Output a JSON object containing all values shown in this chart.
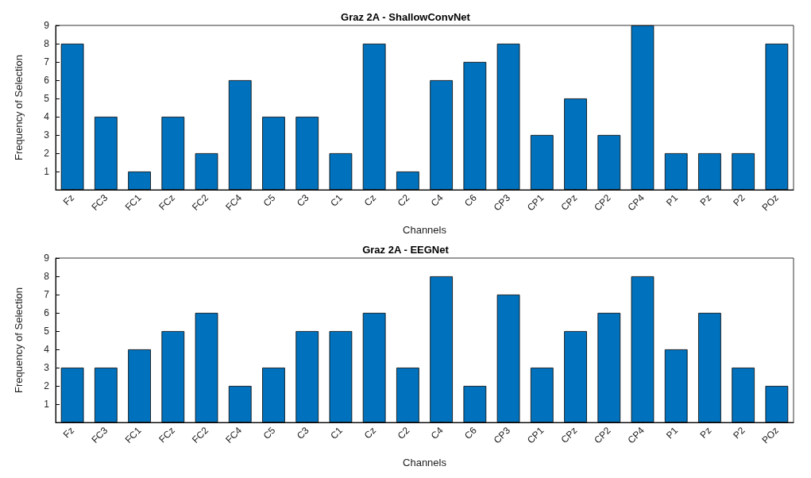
{
  "chart_data": [
    {
      "type": "bar",
      "title": "Graz 2A - ShallowConvNet",
      "xlabel": "Channels",
      "ylabel": "Frequency of Selection",
      "categories": [
        "Fz",
        "FC3",
        "FC1",
        "FCz",
        "FC2",
        "FC4",
        "C5",
        "C3",
        "C1",
        "Cz",
        "C2",
        "C4",
        "C6",
        "CP3",
        "CP1",
        "CPz",
        "CP2",
        "CP4",
        "P1",
        "Pz",
        "P2",
        "POz"
      ],
      "series": [
        {
          "color": "#0072bd",
          "values": [
            8,
            4,
            1,
            4,
            2,
            6,
            4,
            4,
            2,
            8,
            1,
            6,
            7,
            8,
            3,
            5,
            3,
            9,
            2,
            2,
            2,
            8
          ]
        }
      ],
      "ylim": [
        0,
        9
      ],
      "yticks": [
        1,
        2,
        3,
        4,
        5,
        6,
        7,
        8,
        9
      ],
      "grid": false
    },
    {
      "type": "bar",
      "title": "Graz 2A - EEGNet",
      "xlabel": "Channels",
      "ylabel": "Frequency of Selection",
      "categories": [
        "Fz",
        "FC3",
        "FC1",
        "FCz",
        "FC2",
        "FC4",
        "C5",
        "C3",
        "C1",
        "Cz",
        "C2",
        "C4",
        "C6",
        "CP3",
        "CP1",
        "CPz",
        "CP2",
        "CP4",
        "P1",
        "Pz",
        "P2",
        "POz"
      ],
      "series": [
        {
          "color": "#0072bd",
          "values": [
            3,
            3,
            4,
            5,
            6,
            2,
            3,
            5,
            5,
            6,
            3,
            8,
            2,
            7,
            3,
            5,
            6,
            8,
            4,
            6,
            3,
            2
          ]
        }
      ],
      "ylim": [
        0,
        9
      ],
      "yticks": [
        1,
        2,
        3,
        4,
        5,
        6,
        7,
        8,
        9
      ],
      "grid": false
    }
  ]
}
